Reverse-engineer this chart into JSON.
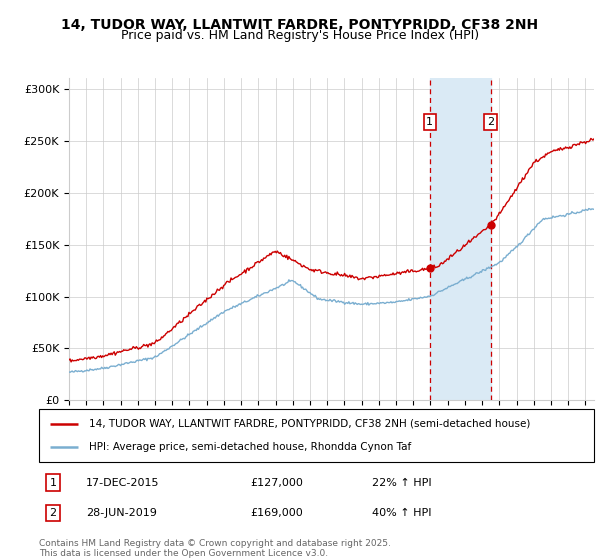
{
  "title_line1": "14, TUDOR WAY, LLANTWIT FARDRE, PONTYPRIDD, CF38 2NH",
  "title_line2": "Price paid vs. HM Land Registry's House Price Index (HPI)",
  "legend_line1": "14, TUDOR WAY, LLANTWIT FARDRE, PONTYPRIDD, CF38 2NH (semi-detached house)",
  "legend_line2": "HPI: Average price, semi-detached house, Rhondda Cynon Taf",
  "footer": "Contains HM Land Registry data © Crown copyright and database right 2025.\nThis data is licensed under the Open Government Licence v3.0.",
  "event1_date": "17-DEC-2015",
  "event1_price": "£127,000",
  "event1_hpi": "22% ↑ HPI",
  "event1_year": 2015.96,
  "event1_value": 127000,
  "event2_date": "28-JUN-2019",
  "event2_price": "£169,000",
  "event2_hpi": "40% ↑ HPI",
  "event2_year": 2019.5,
  "event2_value": 169000,
  "red_color": "#cc0000",
  "blue_color": "#7aaed0",
  "shade_color": "#daeaf5",
  "grid_color": "#cccccc",
  "ylim_min": 0,
  "ylim_max": 310000,
  "xmin": 1995,
  "xmax": 2025.5
}
